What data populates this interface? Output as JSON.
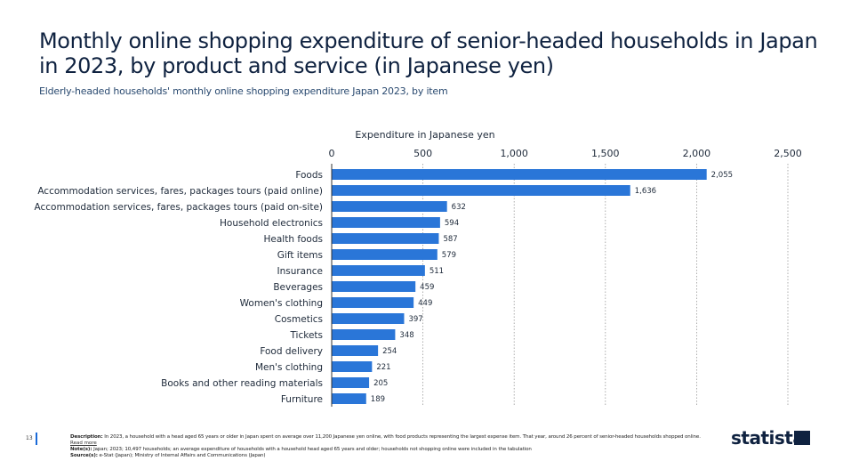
{
  "title": "Monthly online shopping expenditure of senior-headed households in Japan in 2023, by product and service (in Japanese yen)",
  "subtitle": "Elderly-headed households' monthly online shopping expenditure Japan 2023, by item",
  "chart_data": {
    "type": "bar",
    "orientation": "horizontal",
    "xlabel": "Expenditure in Japanese yen",
    "xlim": [
      0,
      2500
    ],
    "ticks": [
      0,
      500,
      1000,
      1500,
      2000,
      2500
    ],
    "tick_labels": [
      "0",
      "500",
      "1,000",
      "1,500",
      "2,000",
      "2,500"
    ],
    "grid": true,
    "bar_color": "#2a76d8",
    "categories": [
      "Foods",
      "Accommodation services, fares, packages tours (paid online)",
      "Accommodation services, fares, packages tours (paid on-site)",
      "Household electronics",
      "Health foods",
      "Gift items",
      "Insurance",
      "Beverages",
      "Women's clothing",
      "Cosmetics",
      "Tickets",
      "Food delivery",
      "Men's clothing",
      "Books and other reading materials",
      "Furniture"
    ],
    "values": [
      2055,
      1636,
      632,
      594,
      587,
      579,
      511,
      459,
      449,
      397,
      348,
      254,
      221,
      205,
      189
    ],
    "value_labels": [
      "2,055",
      "1,636",
      "632",
      "594",
      "587",
      "579",
      "511",
      "459",
      "449",
      "397",
      "348",
      "254",
      "221",
      "205",
      "189"
    ]
  },
  "footer": {
    "page_number": "13",
    "description_label": "Description:",
    "description": "In 2023, a household with a head aged 65 years or older in Japan spent on average over 11,200 Japanese yen online, with food products representing the largest expense item. That year, around 26 percent of senior-headed households shopped online.",
    "read_more": "Read more",
    "notes_label": "Note(s):",
    "notes": "Japan; 2023; 10,497 households; an average expenditure of households with a household head aged 65 years and older; households not shopping online were included in the tabulation",
    "source_label": "Source(s):",
    "source": "e-Stat (Japan); Ministry of Internal Affairs and Communications (Japan)",
    "logo": "statista"
  }
}
